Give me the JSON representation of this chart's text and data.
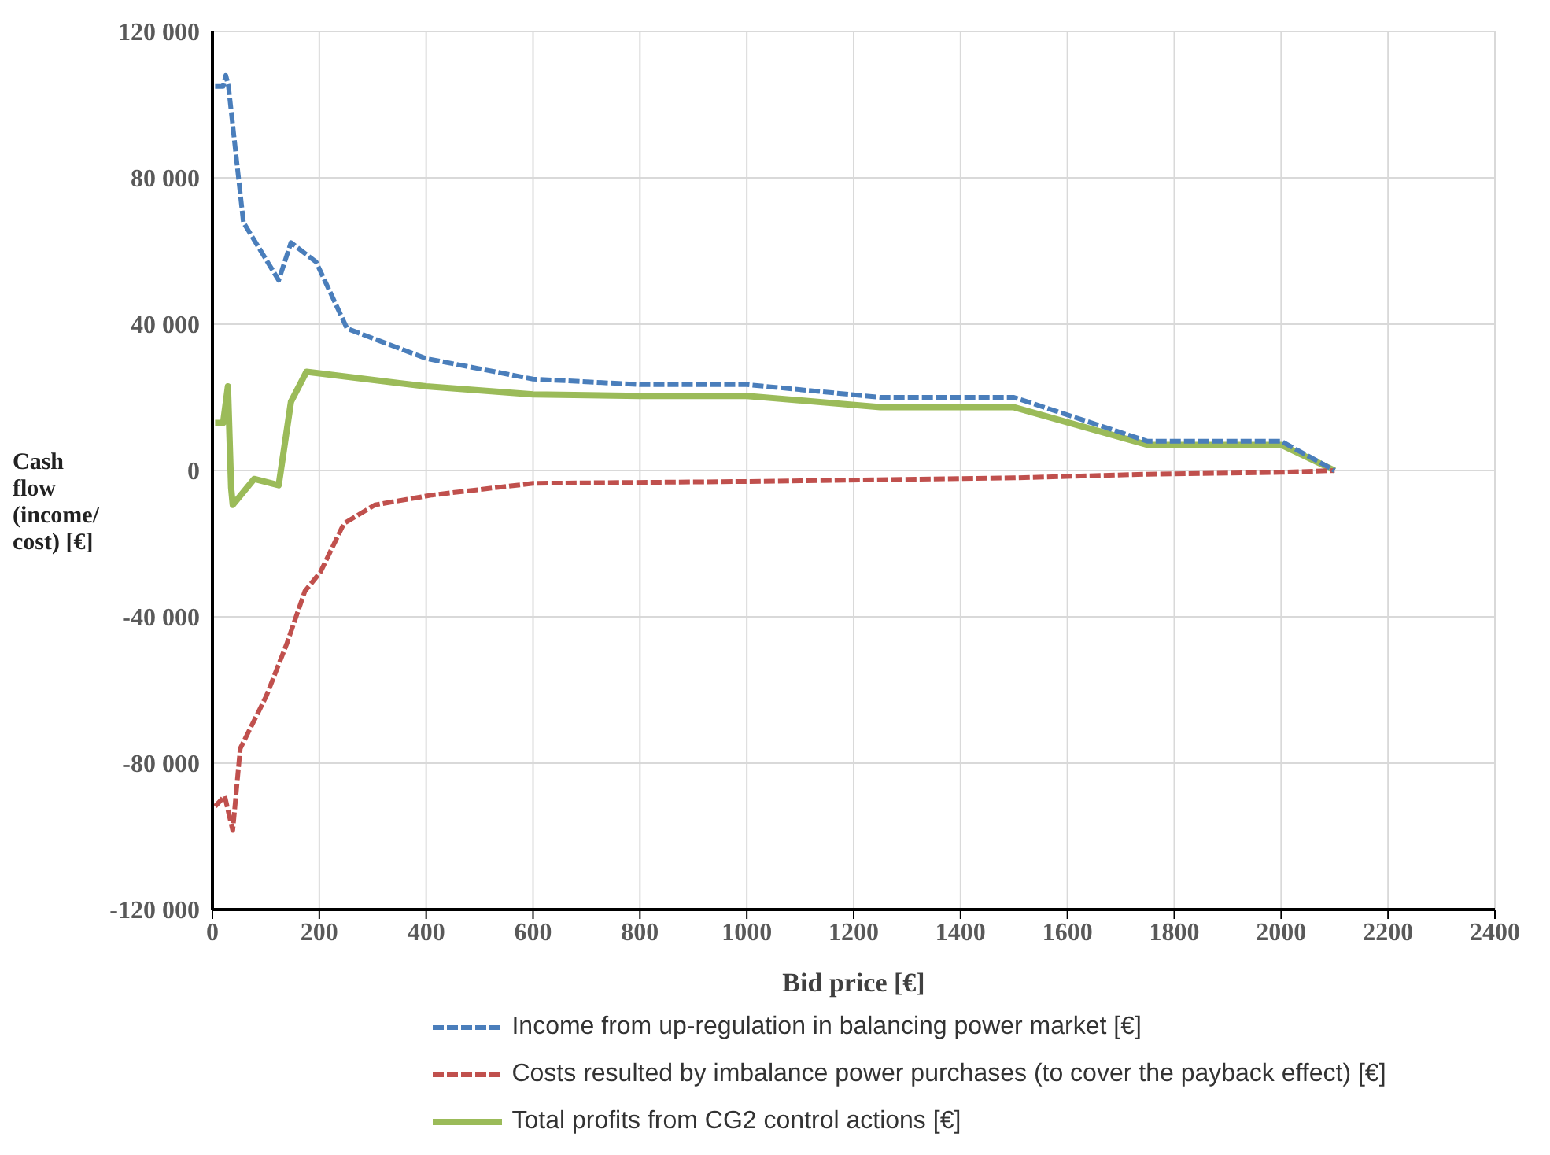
{
  "chart_data": {
    "type": "line",
    "xlabel": "Bid price [€]",
    "ylabel": "Cash flow (income/ cost) [€]",
    "xlim": [
      0,
      2400
    ],
    "xticks": [
      0,
      200,
      400,
      600,
      800,
      1000,
      1200,
      1400,
      1600,
      1800,
      2000,
      2200,
      2400
    ],
    "ylim": [
      -120000,
      120000
    ],
    "yticks": [
      {
        "value": -120000,
        "label": "-120 000"
      },
      {
        "value": -80000,
        "label": "-80 000"
      },
      {
        "value": -40000,
        "label": "-40 000"
      },
      {
        "value": 0,
        "label": "0"
      },
      {
        "value": 40000,
        "label": "40 000"
      },
      {
        "value": 80000,
        "label": "80 000"
      },
      {
        "value": 120000,
        "label": "120 000"
      }
    ],
    "grid": true,
    "legend": "bottom",
    "marker": "none",
    "series": [
      {
        "name": "Income from up-regulation in balancing power market [€]",
        "color": "#4a7ebb",
        "line_style": "dashed",
        "x": [
          5,
          20,
          25,
          30,
          58,
          124,
          147,
          194,
          252,
          400,
          600,
          800,
          1000,
          1250,
          1500,
          1750,
          2000,
          2100
        ],
        "values": [
          105000,
          105000,
          108000,
          105000,
          67800,
          52000,
          62300,
          57000,
          38800,
          30600,
          25000,
          23500,
          23500,
          20000,
          20000,
          8000,
          8000,
          0
        ]
      },
      {
        "name": "Costs resulted by imbalance power purchases (to cover the payback effect)  [€]",
        "color": "#c0504d",
        "line_style": "dashed",
        "x": [
          5,
          23,
          38,
          52,
          101,
          139,
          173,
          202,
          246,
          304,
          411,
          600,
          1000,
          1500,
          1750,
          2000,
          2100
        ],
        "values": [
          -91800,
          -89000,
          -98400,
          -76000,
          -61600,
          -47400,
          -33000,
          -27800,
          -14500,
          -9400,
          -6700,
          -3500,
          -3000,
          -2000,
          -1000,
          -500,
          0
        ]
      },
      {
        "name": "Total profits from CG2 control actions [€]",
        "color": "#9bbb59",
        "line_style": "solid",
        "x": [
          5,
          20,
          29,
          35,
          38,
          78,
          124,
          147,
          176,
          400,
          600,
          800,
          1000,
          1250,
          1500,
          1750,
          2000,
          2100
        ],
        "values": [
          13000,
          13000,
          23000,
          -4700,
          -9400,
          -2300,
          -4000,
          18800,
          27000,
          23000,
          20800,
          20400,
          20400,
          17300,
          17300,
          7000,
          7000,
          0
        ]
      }
    ]
  }
}
